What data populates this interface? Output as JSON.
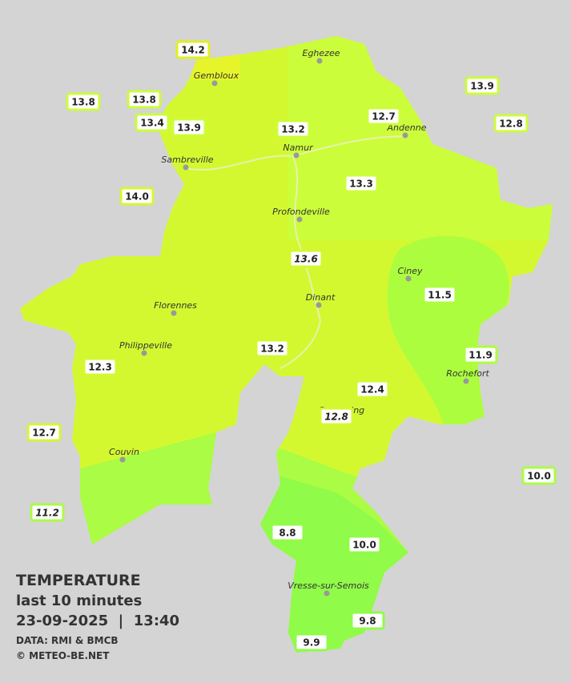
{
  "title": "TEMPERATURE",
  "subtitle": "last 10 minutes",
  "timestamp": "23-09-2025  |  13:40",
  "source": "DATA: RMI & BMCB",
  "credit": "© METEO-BE.NET",
  "places": [
    "Gembloux",
    "Eghezee",
    "Andenne",
    "Sambreville",
    "Namur",
    "Profondeville",
    "Ciney",
    "Florennes",
    "Dinant",
    "Philippeville",
    "Rochefort",
    "Beauraing",
    "Couvin",
    "Vresse-sur-Semois"
  ],
  "stations": [
    "14.2",
    "13.8",
    "13.8",
    "13.4",
    "13.9",
    "13.2",
    "12.7",
    "13.9",
    "12.8",
    "14.0",
    "13.3",
    "13.6",
    "11.5",
    "11.9",
    "13.2",
    "12.3",
    "12.4",
    "12.8",
    "12.7",
    "10.0",
    "11.2",
    "8.8",
    "10.0",
    "9.8",
    "9.9"
  ]
}
